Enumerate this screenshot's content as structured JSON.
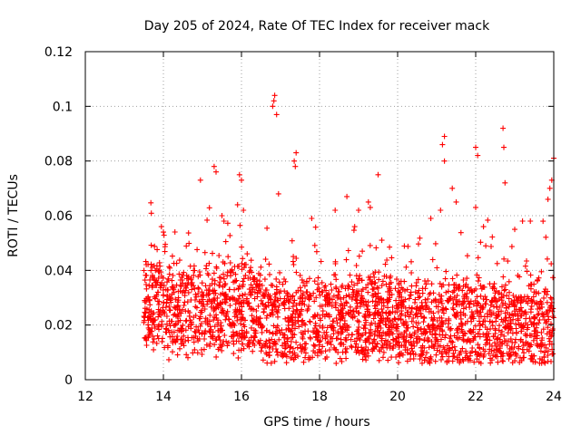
{
  "chart_data": {
    "type": "scatter",
    "title": "Day 205 of 2024, Rate Of TEC Index for receiver mack",
    "xlabel": "GPS time / hours",
    "ylabel": "ROTI / TECUs",
    "xlim": [
      12,
      24
    ],
    "ylim": [
      0,
      0.12
    ],
    "xticks": [
      12,
      14,
      16,
      18,
      20,
      22,
      24
    ],
    "yticks": [
      0,
      0.02,
      0.04,
      0.06,
      0.08,
      0.1,
      0.12
    ],
    "xtick_labels": [
      "12",
      "14",
      "16",
      "18",
      "20",
      "22",
      "24"
    ],
    "ytick_labels": [
      "0",
      "0.02",
      "0.04",
      "0.06",
      "0.08",
      "0.1",
      "0.12"
    ],
    "grid": true,
    "marker": "+",
    "color": "#ff0000",
    "series": [
      {
        "name": "ROTI",
        "note": "dense band of points from ~13.5h to 24h, mostly 0.01–0.04 TECU/s",
        "points": [
          [
            16.85,
            0.104
          ],
          [
            16.8,
            0.1
          ],
          [
            16.9,
            0.097
          ],
          [
            16.83,
            0.102
          ],
          [
            22.7,
            0.092
          ],
          [
            21.2,
            0.089
          ],
          [
            21.15,
            0.086
          ],
          [
            22.0,
            0.085
          ],
          [
            22.05,
            0.082
          ],
          [
            22.72,
            0.085
          ],
          [
            24.0,
            0.081
          ],
          [
            17.4,
            0.083
          ],
          [
            17.35,
            0.08
          ],
          [
            17.38,
            0.078
          ],
          [
            21.2,
            0.08
          ],
          [
            15.3,
            0.078
          ],
          [
            15.35,
            0.076
          ],
          [
            15.95,
            0.075
          ],
          [
            16.0,
            0.073
          ],
          [
            19.5,
            0.075
          ],
          [
            14.95,
            0.073
          ],
          [
            23.95,
            0.073
          ],
          [
            23.9,
            0.07
          ],
          [
            22.75,
            0.072
          ],
          [
            21.4,
            0.07
          ],
          [
            16.95,
            0.068
          ],
          [
            18.7,
            0.067
          ],
          [
            19.25,
            0.065
          ],
          [
            19.3,
            0.063
          ],
          [
            21.5,
            0.065
          ],
          [
            23.85,
            0.066
          ],
          [
            15.9,
            0.064
          ],
          [
            16.05,
            0.062
          ],
          [
            18.4,
            0.062
          ],
          [
            19.0,
            0.062
          ],
          [
            15.5,
            0.06
          ],
          [
            15.55,
            0.058
          ],
          [
            20.85,
            0.059
          ],
          [
            22.0,
            0.063
          ],
          [
            23.4,
            0.058
          ],
          [
            23.2,
            0.058
          ],
          [
            17.8,
            0.059
          ],
          [
            13.95,
            0.056
          ],
          [
            14.0,
            0.054
          ],
          [
            21.1,
            0.062
          ],
          [
            22.2,
            0.056
          ],
          [
            23.0,
            0.055
          ],
          [
            18.9,
            0.056
          ]
        ]
      }
    ]
  }
}
